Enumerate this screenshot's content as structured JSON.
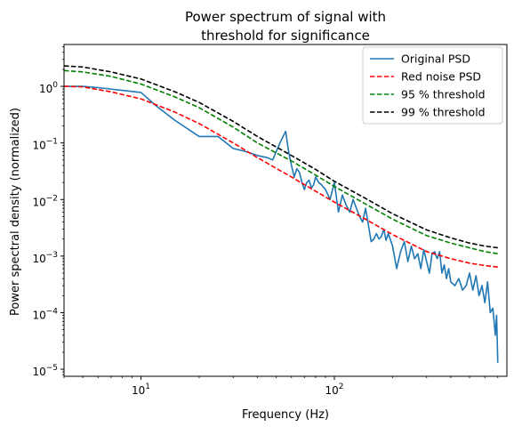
{
  "chart_data": {
    "type": "line",
    "title_lines": [
      "Power spectrum of signal with",
      "threshold for significance"
    ],
    "xlabel": "Frequency (Hz)",
    "ylabel": "Power spectral density (normalized)",
    "x_scale": "log",
    "y_scale": "log",
    "xlim": [
      4,
      780
    ],
    "ylim": [
      7.5e-06,
      5.5
    ],
    "x_ticks": [
      {
        "value": 10,
        "base": "10",
        "exp": "1"
      },
      {
        "value": 100,
        "base": "10",
        "exp": "2"
      }
    ],
    "y_ticks": [
      {
        "value": 1e-05,
        "base": "10",
        "exp": "−5"
      },
      {
        "value": 0.0001,
        "base": "10",
        "exp": "−4"
      },
      {
        "value": 0.001,
        "base": "10",
        "exp": "−3"
      },
      {
        "value": 0.01,
        "base": "10",
        "exp": "−2"
      },
      {
        "value": 0.1,
        "base": "10",
        "exp": "−1"
      },
      {
        "value": 1,
        "base": "10",
        "exp": "0"
      }
    ],
    "grid": false,
    "legend_position": "top-right",
    "series": [
      {
        "name": "Original PSD",
        "color": "#1f77b4",
        "style": "solid",
        "x": [
          4,
          5,
          6,
          8,
          10,
          12,
          15,
          20,
          25,
          30,
          35,
          40,
          45,
          48,
          50,
          53,
          56,
          58,
          60,
          62,
          64,
          66,
          68,
          70,
          72,
          74,
          76,
          78,
          80,
          83,
          86,
          90,
          95,
          100,
          105,
          110,
          115,
          120,
          125,
          130,
          135,
          140,
          145,
          150,
          155,
          160,
          165,
          170,
          175,
          180,
          185,
          190,
          200,
          210,
          220,
          230,
          240,
          250,
          260,
          270,
          280,
          290,
          300,
          310,
          320,
          330,
          340,
          350,
          360,
          370,
          380,
          390,
          400,
          420,
          440,
          460,
          480,
          500,
          520,
          540,
          560,
          580,
          600,
          620,
          640,
          660,
          680,
          690,
          700
        ],
        "y": [
          1.0,
          1.0,
          0.95,
          0.85,
          0.78,
          0.45,
          0.25,
          0.13,
          0.13,
          0.08,
          0.07,
          0.06,
          0.055,
          0.05,
          0.07,
          0.11,
          0.16,
          0.07,
          0.04,
          0.025,
          0.035,
          0.03,
          0.02,
          0.015,
          0.02,
          0.022,
          0.016,
          0.018,
          0.025,
          0.02,
          0.018,
          0.015,
          0.01,
          0.02,
          0.006,
          0.012,
          0.008,
          0.006,
          0.01,
          0.007,
          0.005,
          0.004,
          0.007,
          0.0035,
          0.0018,
          0.002,
          0.0025,
          0.002,
          0.0022,
          0.003,
          0.0019,
          0.0025,
          0.0015,
          0.0006,
          0.0012,
          0.0018,
          0.0008,
          0.0015,
          0.0009,
          0.0011,
          0.0006,
          0.0013,
          0.0008,
          0.0005,
          0.0011,
          0.0012,
          0.0009,
          0.0012,
          0.0005,
          0.0007,
          0.0004,
          0.0006,
          0.00035,
          0.0003,
          0.0004,
          0.00025,
          0.0003,
          0.0005,
          0.00025,
          0.00045,
          0.0002,
          0.0003,
          0.00015,
          0.00035,
          0.0001,
          0.00012,
          4e-05,
          9e-05,
          1.3e-05
        ]
      },
      {
        "name": "Red noise PSD",
        "color": "#ff0000",
        "style": "dashed",
        "x": [
          4,
          5,
          7,
          10,
          15,
          20,
          30,
          40,
          60,
          80,
          100,
          150,
          200,
          300,
          400,
          500,
          600,
          700
        ],
        "y": [
          1.0,
          0.98,
          0.8,
          0.6,
          0.35,
          0.22,
          0.1,
          0.055,
          0.025,
          0.014,
          0.009,
          0.0042,
          0.0024,
          0.0012,
          0.0009,
          0.00075,
          0.00068,
          0.00064
        ]
      },
      {
        "name": "95 % threshold",
        "color": "#008000",
        "style": "dashed",
        "x": [
          4,
          5,
          7,
          10,
          15,
          20,
          30,
          40,
          60,
          80,
          100,
          150,
          200,
          300,
          400,
          500,
          600,
          700
        ],
        "y": [
          1.9,
          1.8,
          1.5,
          1.1,
          0.65,
          0.42,
          0.19,
          0.1,
          0.048,
          0.027,
          0.017,
          0.0078,
          0.0045,
          0.0023,
          0.0017,
          0.0014,
          0.0012,
          0.0011
        ]
      },
      {
        "name": "99 % threshold",
        "color": "#000000",
        "style": "dashed",
        "x": [
          4,
          5,
          7,
          10,
          15,
          20,
          30,
          40,
          60,
          80,
          100,
          150,
          200,
          300,
          400,
          500,
          600,
          700
        ],
        "y": [
          2.3,
          2.2,
          1.8,
          1.35,
          0.8,
          0.52,
          0.24,
          0.13,
          0.06,
          0.034,
          0.021,
          0.0098,
          0.0056,
          0.0029,
          0.0021,
          0.0017,
          0.0015,
          0.0014
        ]
      }
    ]
  }
}
